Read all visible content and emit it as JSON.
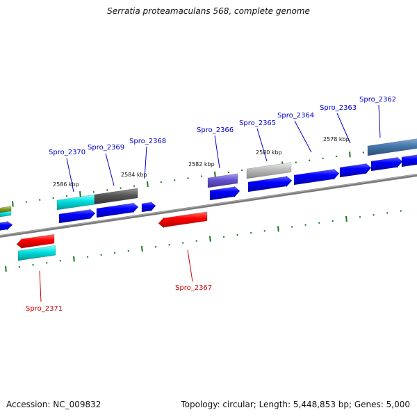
{
  "title": "Serratia proteamaculans 568, complete genome",
  "footer": {
    "accession": "Accession: NC_009832",
    "summary": "Topology: circular; Length: 5,448,853 bp; Genes: 5,000"
  },
  "colors": {
    "forward_label": "#0000cc",
    "reverse_label": "#cc0000",
    "backbone": "#808080",
    "tick": "#1a7a1a",
    "cds_blue": "#0000ff",
    "cds_red": "#ff0000",
    "cyan": "#00cccc",
    "dark_gray": "#555555",
    "light_gray": "#b8b8b8",
    "slate": "#6655cc",
    "steel": "#4477aa",
    "olive": "#7a9a20"
  },
  "kbp_labels": [
    "2586 kbp",
    "2584 kbp",
    "2582 kbp",
    "2580 kbp",
    "2578 kbp"
  ],
  "gene_labels": {
    "forward": [
      "Spro_2370",
      "Spro_2369",
      "Spro_2368",
      "Spro_2366",
      "Spro_2365",
      "Spro_2364",
      "Spro_2363",
      "Spro_2362"
    ],
    "reverse": [
      "Spro_2371",
      "Spro_2367"
    ]
  }
}
